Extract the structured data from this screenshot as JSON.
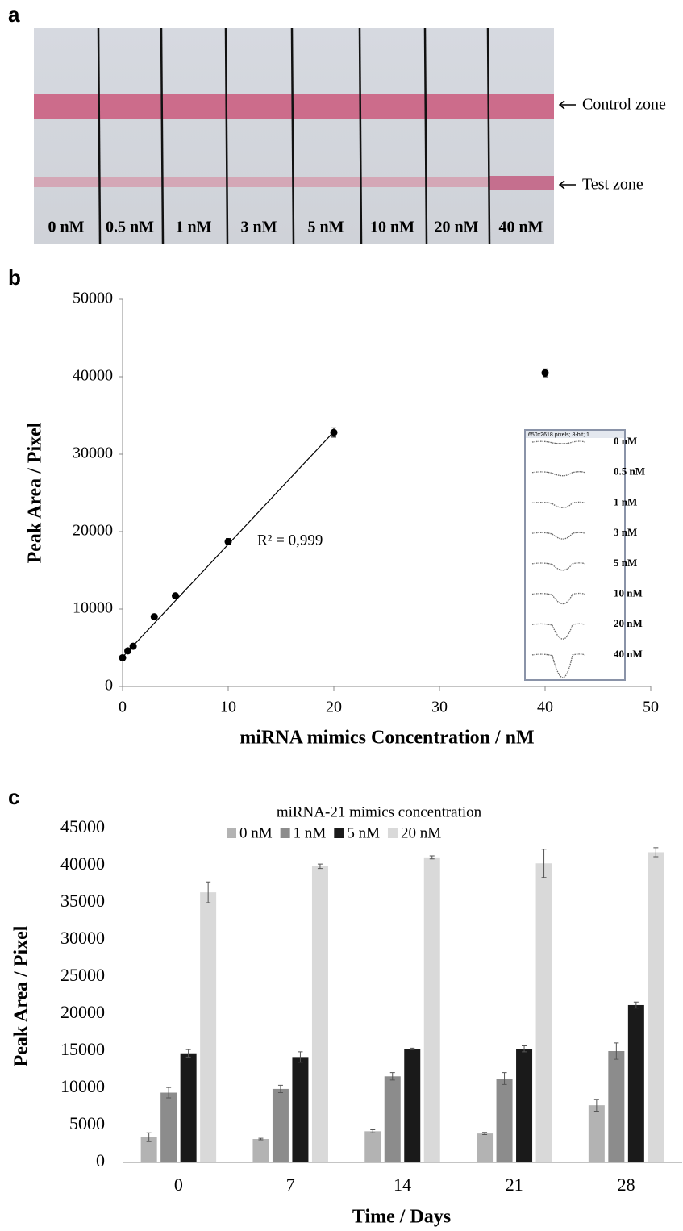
{
  "panel_a": {
    "label": "a",
    "lanes": [
      "0 nM",
      "0.5 nM",
      "1 nM",
      "3 nM",
      "5 nM",
      "10 nM",
      "20 nM",
      "40 nM"
    ],
    "annotations": [
      "Control zone",
      "Test zone"
    ]
  },
  "chart_data": [
    {
      "type": "scatter",
      "panel_label": "b",
      "x_label": "miRNA mimics Concentration / nM",
      "y_label": "Peak Area / Pixel",
      "x": [
        0,
        0.5,
        1,
        3,
        5,
        10,
        20,
        40
      ],
      "values": [
        3700,
        4600,
        5200,
        9000,
        11700,
        18700,
        32800,
        40500
      ],
      "errors": [
        200,
        200,
        200,
        200,
        200,
        400,
        600,
        500
      ],
      "color": "#000000",
      "trendline": {
        "x": [
          0,
          20
        ],
        "y": [
          3800,
          32900
        ],
        "label": "R² = 0,999"
      },
      "xlim": [
        0,
        50
      ],
      "xticks": [
        0,
        10,
        20,
        30,
        40,
        50
      ],
      "ylim": [
        0,
        50000
      ],
      "yticks": [
        0,
        10000,
        20000,
        30000,
        40000,
        50000
      ],
      "inset": {
        "header": "650x2618 pixels; 8-bit; 1",
        "labels": [
          "0 nM",
          "0.5 nM",
          "1 nM",
          "3 nM",
          "5 nM",
          "10 nM",
          "20 nM",
          "40 nM"
        ]
      }
    },
    {
      "type": "bar",
      "panel_label": "c",
      "legend_title": "miRNA-21 mimics concentration",
      "x_label": "Time / Days",
      "y_label": "Peak Area / Pixel",
      "categories": [
        "0",
        "7",
        "14",
        "21",
        "28"
      ],
      "series": [
        {
          "name": "0 nM",
          "color": "#b3b3b3",
          "values": [
            3400,
            3150,
            4200,
            3900,
            7700
          ],
          "errors": [
            600,
            100,
            200,
            150,
            800
          ]
        },
        {
          "name": "1 nM",
          "color": "#8c8c8c",
          "values": [
            9400,
            9900,
            11600,
            11300,
            15000
          ],
          "errors": [
            700,
            500,
            500,
            800,
            1100
          ]
        },
        {
          "name": "5 nM",
          "color": "#1a1a1a",
          "values": [
            14700,
            14200,
            15300,
            15300,
            21200
          ],
          "errors": [
            500,
            700,
            100,
            400,
            400
          ]
        },
        {
          "name": "20 nM",
          "color": "#d9d9d9",
          "values": [
            36400,
            39900,
            41100,
            40300,
            41800
          ],
          "errors": [
            1400,
            300,
            200,
            1900,
            600
          ]
        }
      ],
      "ylim": [
        0,
        45000
      ],
      "yticks": [
        0,
        5000,
        10000,
        15000,
        20000,
        25000,
        30000,
        35000,
        40000,
        45000
      ]
    }
  ]
}
